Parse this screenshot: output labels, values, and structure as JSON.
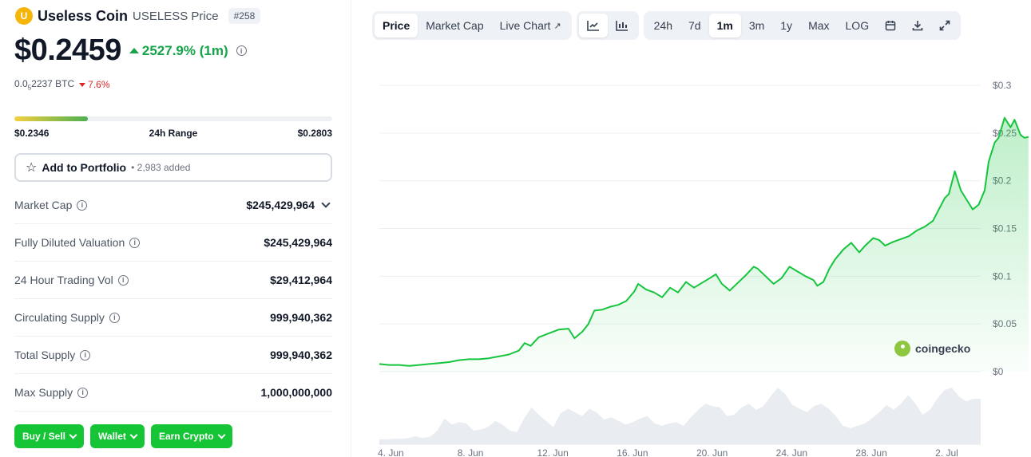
{
  "coin": {
    "logo_letter": "U",
    "name": "Useless Coin",
    "symbol_label": "USELESS Price",
    "rank": "#258",
    "price": "$0.2459",
    "change": "2527.9% (1m)",
    "btc_prefix": "0.0",
    "btc_sub": "5",
    "btc_suffix": "2237 BTC",
    "btc_change": "7.6%"
  },
  "range": {
    "low": "$0.2346",
    "label": "24h Range",
    "high": "$0.2803",
    "fill_fraction": 0.23
  },
  "portfolio": {
    "label": "Add to Portfolio",
    "count": "• 2,983 added"
  },
  "stats": [
    {
      "label": "Market Cap",
      "value": "$245,429,964",
      "expandable": true
    },
    {
      "label": "Fully Diluted Valuation",
      "value": "$245,429,964",
      "expandable": false
    },
    {
      "label": "24 Hour Trading Vol",
      "value": "$29,412,964",
      "expandable": false
    },
    {
      "label": "Circulating Supply",
      "value": "999,940,362",
      "expandable": false
    },
    {
      "label": "Total Supply",
      "value": "999,940,362",
      "expandable": false
    },
    {
      "label": "Max Supply",
      "value": "1,000,000,000",
      "expandable": false
    }
  ],
  "actions": [
    {
      "label": "Buy / Sell"
    },
    {
      "label": "Wallet"
    },
    {
      "label": "Earn Crypto"
    }
  ],
  "toolbar": {
    "views": [
      {
        "label": "Price",
        "active": true
      },
      {
        "label": "Market Cap",
        "active": false
      },
      {
        "label": "Live Chart",
        "active": false,
        "external": true
      }
    ],
    "chart_types": [
      {
        "icon": "line-chart-icon",
        "active": true
      },
      {
        "icon": "candlestick-icon",
        "active": false
      }
    ],
    "ranges": [
      {
        "label": "24h",
        "active": false
      },
      {
        "label": "7d",
        "active": false
      },
      {
        "label": "1m",
        "active": true
      },
      {
        "label": "3m",
        "active": false
      },
      {
        "label": "1y",
        "active": false
      },
      {
        "label": "Max",
        "active": false
      },
      {
        "label": "LOG",
        "active": false
      }
    ],
    "tools": [
      {
        "icon": "calendar-icon"
      },
      {
        "icon": "download-icon"
      },
      {
        "icon": "expand-icon"
      }
    ]
  },
  "watermark": "coingecko",
  "colors": {
    "line": "#16c53e",
    "up": "#16a34a",
    "down": "#dc2626",
    "button": "#16c536"
  },
  "chart_data": {
    "type": "area",
    "title": "",
    "xlabel": "",
    "ylabel": "",
    "ylim": [
      0,
      0.3
    ],
    "y_ticks": [
      "$0",
      "$0.05",
      "$0.1",
      "$0.15",
      "$0.2",
      "$0.25",
      "$0.3"
    ],
    "y_tick_values": [
      0,
      0.05,
      0.1,
      0.15,
      0.2,
      0.25,
      0.3
    ],
    "x_ticks": [
      "4. Jun",
      "8. Jun",
      "12. Jun",
      "16. Jun",
      "20. Jun",
      "24. Jun",
      "28. Jun",
      "2. Jul"
    ],
    "x_tick_days": [
      0,
      4,
      8,
      12,
      16,
      20,
      24,
      28
    ],
    "x_max_day": 30.2,
    "series": [
      {
        "values": [
          [
            0.0,
            0.008
          ],
          [
            0.5,
            0.007
          ],
          [
            1.0,
            0.007
          ],
          [
            1.5,
            0.006
          ],
          [
            2.0,
            0.007
          ],
          [
            2.5,
            0.008
          ],
          [
            3.0,
            0.009
          ],
          [
            3.5,
            0.01
          ],
          [
            4.0,
            0.012
          ],
          [
            4.5,
            0.013
          ],
          [
            5.0,
            0.013
          ],
          [
            5.5,
            0.014
          ],
          [
            6.0,
            0.016
          ],
          [
            6.5,
            0.018
          ],
          [
            7.0,
            0.022
          ],
          [
            7.3,
            0.03
          ],
          [
            7.6,
            0.027
          ],
          [
            8.0,
            0.036
          ],
          [
            8.5,
            0.04
          ],
          [
            9.0,
            0.044
          ],
          [
            9.5,
            0.045
          ],
          [
            9.8,
            0.035
          ],
          [
            10.2,
            0.042
          ],
          [
            10.5,
            0.05
          ],
          [
            10.8,
            0.064
          ],
          [
            11.2,
            0.065
          ],
          [
            11.6,
            0.068
          ],
          [
            12.0,
            0.07
          ],
          [
            12.4,
            0.074
          ],
          [
            12.8,
            0.084
          ],
          [
            13.0,
            0.092
          ],
          [
            13.4,
            0.086
          ],
          [
            13.8,
            0.083
          ],
          [
            14.2,
            0.078
          ],
          [
            14.6,
            0.088
          ],
          [
            15.0,
            0.083
          ],
          [
            15.4,
            0.094
          ],
          [
            15.8,
            0.088
          ],
          [
            16.2,
            0.093
          ],
          [
            16.6,
            0.098
          ],
          [
            16.9,
            0.102
          ],
          [
            17.2,
            0.092
          ],
          [
            17.6,
            0.085
          ],
          [
            18.0,
            0.093
          ],
          [
            18.4,
            0.101
          ],
          [
            18.8,
            0.11
          ],
          [
            19.0,
            0.108
          ],
          [
            19.4,
            0.1
          ],
          [
            19.8,
            0.092
          ],
          [
            20.2,
            0.098
          ],
          [
            20.6,
            0.11
          ],
          [
            21.0,
            0.105
          ],
          [
            21.4,
            0.1
          ],
          [
            21.8,
            0.096
          ],
          [
            22.0,
            0.09
          ],
          [
            22.3,
            0.094
          ],
          [
            22.6,
            0.108
          ],
          [
            22.9,
            0.118
          ],
          [
            23.3,
            0.128
          ],
          [
            23.7,
            0.135
          ],
          [
            24.1,
            0.125
          ],
          [
            24.4,
            0.132
          ],
          [
            24.8,
            0.14
          ],
          [
            25.1,
            0.138
          ],
          [
            25.4,
            0.132
          ],
          [
            25.8,
            0.136
          ],
          [
            26.2,
            0.139
          ],
          [
            26.6,
            0.142
          ],
          [
            27.0,
            0.148
          ],
          [
            27.4,
            0.152
          ],
          [
            27.8,
            0.158
          ],
          [
            28.1,
            0.17
          ],
          [
            28.4,
            0.182
          ],
          [
            28.6,
            0.186
          ],
          [
            28.9,
            0.21
          ],
          [
            29.2,
            0.19
          ],
          [
            29.5,
            0.18
          ],
          [
            29.8,
            0.17
          ],
          [
            30.1,
            0.175
          ],
          [
            30.4,
            0.19
          ],
          [
            30.6,
            0.22
          ],
          [
            30.9,
            0.24
          ],
          [
            31.1,
            0.245
          ],
          [
            31.4,
            0.266
          ],
          [
            31.7,
            0.256
          ],
          [
            31.9,
            0.264
          ],
          [
            32.2,
            0.248
          ],
          [
            32.4,
            0.245
          ],
          [
            32.6,
            0.246
          ]
        ]
      }
    ],
    "volume": [
      0.08,
      0.08,
      0.09,
      0.09,
      0.1,
      0.13,
      0.1,
      0.12,
      0.22,
      0.42,
      0.32,
      0.36,
      0.34,
      0.22,
      0.24,
      0.28,
      0.38,
      0.32,
      0.22,
      0.2,
      0.42,
      0.6,
      0.48,
      0.38,
      0.28,
      0.5,
      0.58,
      0.52,
      0.46,
      0.58,
      0.52,
      0.4,
      0.44,
      0.38,
      0.32,
      0.36,
      0.42,
      0.46,
      0.34,
      0.3,
      0.34,
      0.36,
      0.3,
      0.44,
      0.56,
      0.66,
      0.62,
      0.6,
      0.46,
      0.48,
      0.6,
      0.66,
      0.56,
      0.62,
      0.78,
      0.92,
      0.82,
      0.64,
      0.58,
      0.52,
      0.62,
      0.66,
      0.58,
      0.46,
      0.3,
      0.26,
      0.3,
      0.34,
      0.42,
      0.52,
      0.64,
      0.56,
      0.66,
      0.8,
      0.66,
      0.48,
      0.56,
      0.74,
      0.88,
      0.92,
      0.78,
      0.7,
      0.74
    ]
  }
}
